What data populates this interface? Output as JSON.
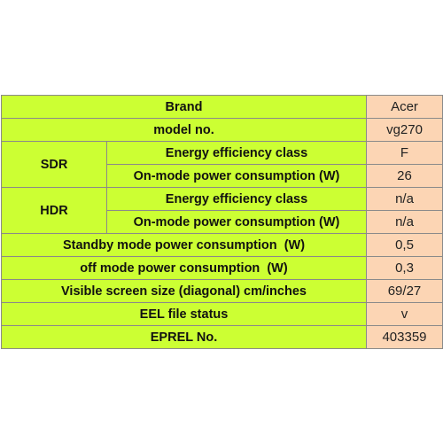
{
  "table": {
    "rows": [
      {
        "label": "Brand",
        "value": "Acer"
      },
      {
        "label": "model no.",
        "value": "vg270"
      },
      {
        "group": "SDR",
        "items": [
          {
            "label": "Energy efficiency class",
            "value": "F"
          },
          {
            "label": "On-mode power consumption (W)",
            "value": "26"
          }
        ]
      },
      {
        "group": "HDR",
        "items": [
          {
            "label": "Energy efficiency class",
            "value": "n/a"
          },
          {
            "label": "On-mode power consumption (W)",
            "value": "n/a"
          }
        ]
      },
      {
        "label": "Standby mode power consumption  (W)",
        "value": "0,5"
      },
      {
        "label": "off mode power consumption  (W)",
        "value": "0,3"
      },
      {
        "label": "Visible screen size (diagonal) cm/inches",
        "value": "69/27"
      },
      {
        "label": "EEL file status",
        "value": "v"
      },
      {
        "label": "EPREL No.",
        "value": "403359"
      }
    ]
  }
}
